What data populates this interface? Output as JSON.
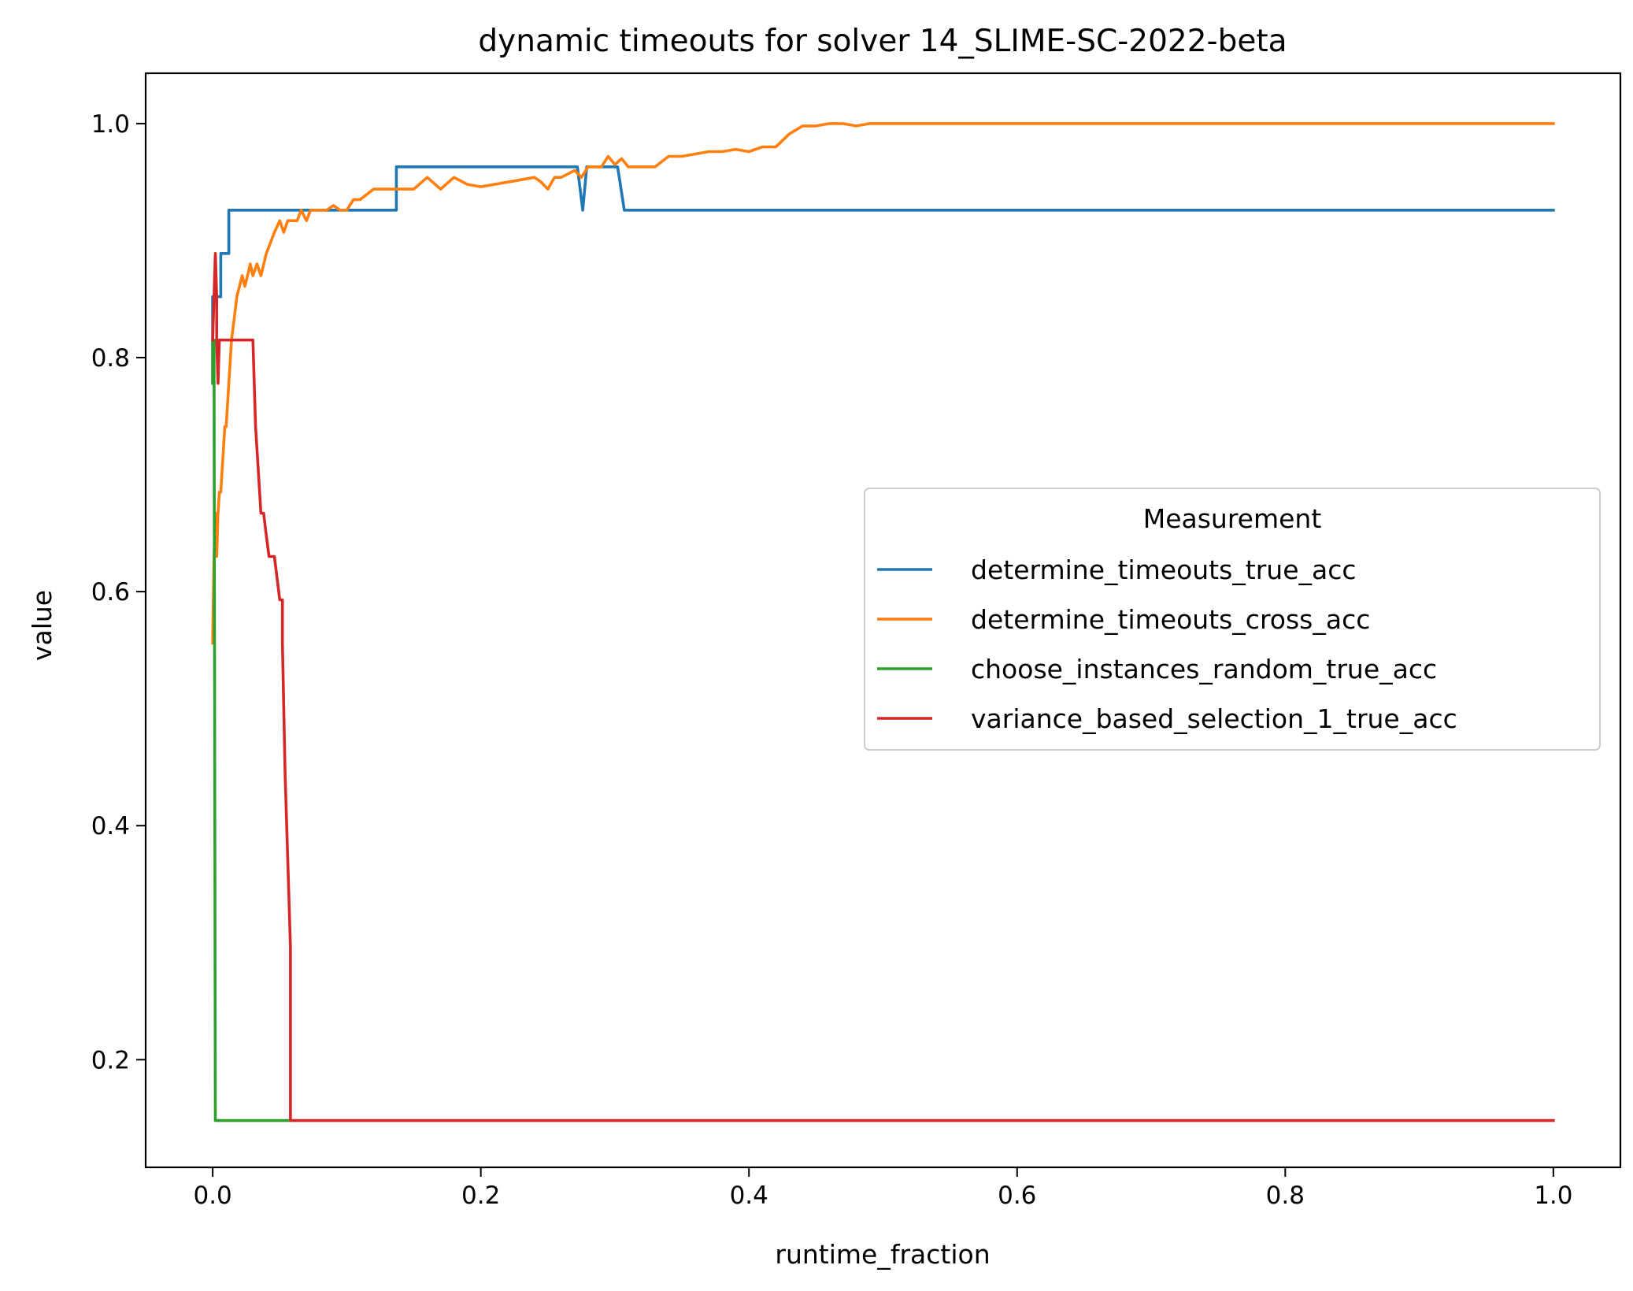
{
  "chart_data": {
    "type": "line",
    "title": "dynamic timeouts for solver 14_SLIME-SC-2022-beta",
    "xlabel": "runtime_fraction",
    "ylabel": "value",
    "xlim": [
      -0.05,
      1.05
    ],
    "ylim": [
      0.108,
      1.043
    ],
    "xticks": [
      0.0,
      0.2,
      0.4,
      0.6,
      0.8,
      1.0
    ],
    "xtick_labels": [
      "0.0",
      "0.2",
      "0.4",
      "0.6",
      "0.8",
      "1.0"
    ],
    "yticks": [
      0.2,
      0.4,
      0.6,
      0.8,
      1.0
    ],
    "ytick_labels": [
      "0.2",
      "0.4",
      "0.6",
      "0.8",
      "1.0"
    ],
    "grid": false,
    "legend": {
      "title": "Measurement",
      "placement": "center-right"
    },
    "series": [
      {
        "name": "determine_timeouts_true_acc",
        "color": "#1f77b4",
        "x": [
          0.0,
          0.0,
          0.002,
          0.002,
          0.006,
          0.006,
          0.012,
          0.012,
          0.137,
          0.137,
          0.272,
          0.276,
          0.279,
          0.282,
          0.302,
          0.307,
          1.0
        ],
        "y": [
          0.778,
          0.852,
          0.852,
          0.852,
          0.852,
          0.889,
          0.889,
          0.926,
          0.926,
          0.963,
          0.963,
          0.926,
          0.963,
          0.963,
          0.963,
          0.926,
          0.926
        ]
      },
      {
        "name": "determine_timeouts_cross_acc",
        "color": "#ff7f0e",
        "x": [
          0.0,
          0.001,
          0.002,
          0.003,
          0.004,
          0.005,
          0.006,
          0.007,
          0.008,
          0.009,
          0.01,
          0.011,
          0.012,
          0.013,
          0.014,
          0.016,
          0.018,
          0.02,
          0.022,
          0.024,
          0.026,
          0.028,
          0.03,
          0.033,
          0.036,
          0.04,
          0.043,
          0.046,
          0.05,
          0.053,
          0.056,
          0.06,
          0.063,
          0.066,
          0.07,
          0.073,
          0.076,
          0.08,
          0.085,
          0.09,
          0.095,
          0.1,
          0.105,
          0.11,
          0.12,
          0.13,
          0.14,
          0.15,
          0.16,
          0.17,
          0.18,
          0.19,
          0.2,
          0.21,
          0.22,
          0.23,
          0.24,
          0.245,
          0.25,
          0.255,
          0.26,
          0.27,
          0.275,
          0.28,
          0.285,
          0.29,
          0.295,
          0.3,
          0.305,
          0.31,
          0.32,
          0.33,
          0.34,
          0.35,
          0.36,
          0.37,
          0.38,
          0.39,
          0.4,
          0.41,
          0.42,
          0.43,
          0.44,
          0.45,
          0.46,
          0.47,
          0.48,
          0.49,
          0.5,
          0.6,
          0.7,
          0.8,
          0.9,
          1.0
        ],
        "y": [
          0.556,
          0.63,
          0.667,
          0.63,
          0.667,
          0.685,
          0.685,
          0.704,
          0.722,
          0.741,
          0.741,
          0.759,
          0.778,
          0.796,
          0.815,
          0.833,
          0.852,
          0.861,
          0.87,
          0.861,
          0.87,
          0.88,
          0.87,
          0.88,
          0.87,
          0.889,
          0.898,
          0.907,
          0.917,
          0.907,
          0.917,
          0.917,
          0.917,
          0.926,
          0.917,
          0.926,
          0.926,
          0.926,
          0.926,
          0.93,
          0.926,
          0.926,
          0.935,
          0.935,
          0.944,
          0.944,
          0.944,
          0.944,
          0.954,
          0.944,
          0.954,
          0.948,
          0.946,
          0.948,
          0.95,
          0.952,
          0.954,
          0.95,
          0.944,
          0.954,
          0.954,
          0.96,
          0.954,
          0.963,
          0.963,
          0.963,
          0.972,
          0.965,
          0.97,
          0.963,
          0.963,
          0.963,
          0.972,
          0.972,
          0.974,
          0.976,
          0.976,
          0.978,
          0.976,
          0.98,
          0.98,
          0.991,
          0.998,
          0.998,
          1.0,
          1.0,
          0.998,
          1.0,
          1.0,
          1.0,
          1.0,
          1.0,
          1.0,
          1.0
        ]
      },
      {
        "name": "choose_instances_random_true_acc",
        "color": "#2ca02c",
        "x": [
          0.0,
          0.0,
          0.001,
          0.002,
          0.002,
          0.058
        ],
        "y": [
          0.778,
          0.815,
          0.815,
          0.148,
          0.148,
          0.148
        ]
      },
      {
        "name": "variance_based_selection_1_true_acc",
        "color": "#d62728",
        "x": [
          0.0,
          0.001,
          0.002,
          0.003,
          0.003,
          0.004,
          0.005,
          0.006,
          0.01,
          0.03,
          0.032,
          0.036,
          0.038,
          0.04,
          0.042,
          0.044,
          0.046,
          0.05,
          0.052,
          0.052,
          0.054,
          0.056,
          0.058,
          0.058,
          1.0
        ],
        "y": [
          0.815,
          0.852,
          0.889,
          0.852,
          0.815,
          0.778,
          0.815,
          0.815,
          0.815,
          0.815,
          0.741,
          0.667,
          0.667,
          0.648,
          0.63,
          0.63,
          0.63,
          0.593,
          0.593,
          0.556,
          0.444,
          0.37,
          0.296,
          0.148,
          0.148
        ]
      }
    ]
  }
}
